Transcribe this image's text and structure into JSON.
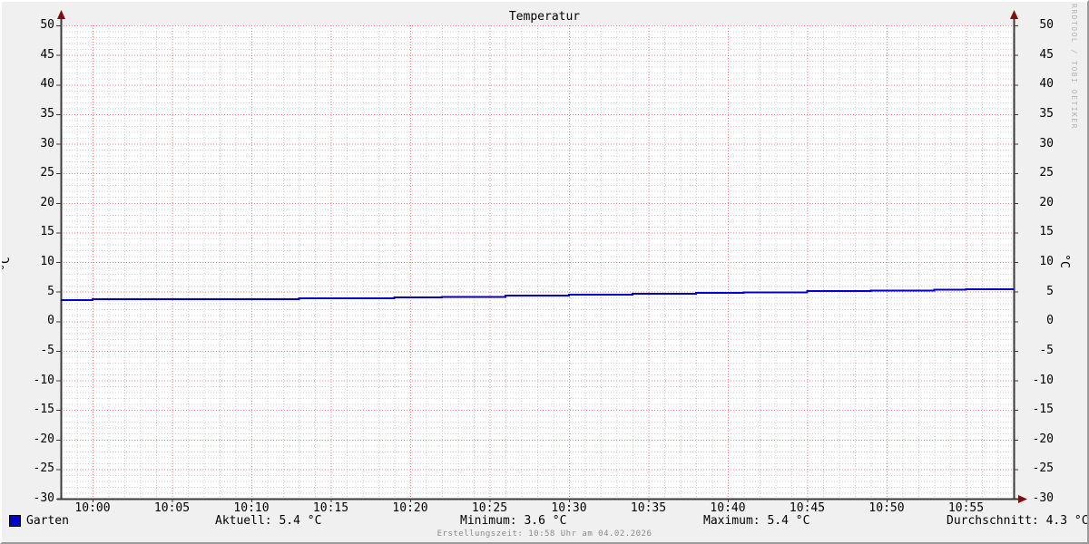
{
  "title": "Temperatur",
  "y_axis_unit_left": "°C",
  "y_axis_unit_right": "°C",
  "watermark": "RRDTOOL / TOBI OETIKER",
  "footer": "Erstellungszeit: 10:58 Uhr am 04.02.2026",
  "legend": {
    "series_name": "Garten",
    "aktuell": "Aktuell: 5.4 °C",
    "minimum": "Minimum: 3.6 °C",
    "maximum": "Maximum: 5.4 °C",
    "durchschnitt": "Durchschnitt: 4.3 °C"
  },
  "colors": {
    "line": "#0000cc",
    "legend_swatch": "#0000cc",
    "major_grid": "#f28080",
    "minor_grid": "#cdcdcd",
    "axis": "#3a3a3a",
    "arrow": "#7a1010",
    "plot_background": "#ffffff",
    "canvas_background": "#f0f0f0",
    "footer_text": "#8a8a8a",
    "watermark_text": "#b3b3b3"
  },
  "chart_data": {
    "type": "line",
    "title": "Temperatur",
    "ylabel": "°C",
    "ylim": [
      -30,
      50
    ],
    "y_tick_step": 5,
    "y_minor_step": 1,
    "y_ticks": [
      50,
      45,
      40,
      35,
      30,
      25,
      20,
      15,
      10,
      5,
      0,
      -5,
      -10,
      -15,
      -20,
      -25,
      -30
    ],
    "x_range": [
      "09:58",
      "10:58"
    ],
    "x_ticks": [
      "10:00",
      "10:05",
      "10:10",
      "10:15",
      "10:20",
      "10:25",
      "10:30",
      "10:35",
      "10:40",
      "10:45",
      "10:50",
      "10:55"
    ],
    "x_minor_step_minutes": 1,
    "grid": true,
    "legend_position": "bottom-left",
    "series": [
      {
        "name": "Garten",
        "color": "#0000cc",
        "draw": "step-after",
        "points": [
          [
            "09:58",
            3.6
          ],
          [
            "10:00",
            3.7
          ],
          [
            "10:13",
            3.9
          ],
          [
            "10:19",
            4.0
          ],
          [
            "10:22",
            4.1
          ],
          [
            "10:26",
            4.3
          ],
          [
            "10:30",
            4.5
          ],
          [
            "10:34",
            4.6
          ],
          [
            "10:38",
            4.8
          ],
          [
            "10:41",
            4.9
          ],
          [
            "10:45",
            5.1
          ],
          [
            "10:49",
            5.2
          ],
          [
            "10:53",
            5.3
          ],
          [
            "10:55",
            5.4
          ],
          [
            "10:58",
            5.4
          ]
        ]
      }
    ],
    "stats": {
      "aktuell": "5.4 °C",
      "minimum": "3.6 °C",
      "maximum": "5.4 °C",
      "durchschnitt": "4.3 °C"
    }
  }
}
